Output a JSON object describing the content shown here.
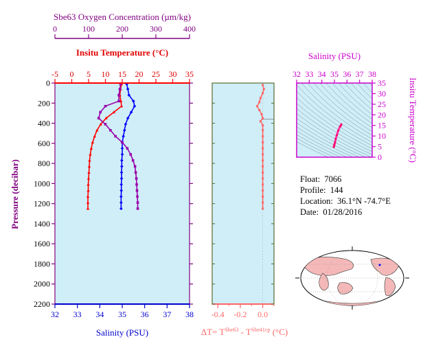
{
  "chart_data": [
    {
      "type": "line",
      "name_axis": "profile",
      "y_axis": {
        "label": "Pressure (decibar)",
        "range": [
          0,
          2200
        ],
        "ticks": [
          0,
          200,
          400,
          600,
          800,
          1000,
          1200,
          1400,
          1600,
          1800,
          2000,
          2200
        ],
        "inverted": true,
        "color": "#800080"
      },
      "x_axes": {
        "oxygen": {
          "label": "Sbe63 Oxygen Concentration (µm/kg)",
          "range": [
            0,
            400
          ],
          "ticks": [
            0,
            100,
            200,
            300,
            400
          ],
          "color": "#800080"
        },
        "temperature": {
          "label": "Insitu Temperature (°C)",
          "range": [
            -5,
            35
          ],
          "ticks": [
            -5,
            0,
            5,
            10,
            15,
            20,
            25,
            30,
            35
          ],
          "color": "#e00000"
        },
        "salinity": {
          "label": "Salinity (PSU)",
          "range": [
            32,
            38
          ],
          "ticks": [
            32,
            33,
            34,
            35,
            36,
            37,
            38
          ],
          "color": "#0000cc"
        }
      },
      "background": "#cfeef7",
      "series": [
        {
          "key": "temperature",
          "color": "#ff0000",
          "points": [
            [
              14.8,
              10
            ],
            [
              14.5,
              60
            ],
            [
              14.3,
              120
            ],
            [
              14.6,
              180
            ],
            [
              14.8,
              230
            ],
            [
              12.5,
              290
            ],
            [
              10.2,
              350
            ],
            [
              8.6,
              410
            ],
            [
              7.5,
              470
            ],
            [
              6.8,
              530
            ],
            [
              6.2,
              590
            ],
            [
              5.8,
              650
            ],
            [
              5.5,
              710
            ],
            [
              5.3,
              770
            ],
            [
              5.2,
              830
            ],
            [
              5.1,
              890
            ],
            [
              5.0,
              950
            ],
            [
              4.9,
              1010
            ],
            [
              4.9,
              1070
            ],
            [
              4.8,
              1130
            ],
            [
              4.8,
              1190
            ],
            [
              4.8,
              1250
            ]
          ]
        },
        {
          "key": "salinity",
          "color": "#0000ff",
          "points": [
            [
              35.2,
              10
            ],
            [
              35.25,
              60
            ],
            [
              35.3,
              120
            ],
            [
              35.5,
              180
            ],
            [
              35.55,
              230
            ],
            [
              35.4,
              290
            ],
            [
              35.25,
              350
            ],
            [
              35.15,
              410
            ],
            [
              35.1,
              470
            ],
            [
              35.05,
              530
            ],
            [
              35.0,
              590
            ],
            [
              35.0,
              650
            ],
            [
              35.0,
              710
            ],
            [
              34.98,
              770
            ],
            [
              34.98,
              830
            ],
            [
              34.97,
              890
            ],
            [
              34.97,
              950
            ],
            [
              34.96,
              1010
            ],
            [
              34.96,
              1070
            ],
            [
              34.95,
              1130
            ],
            [
              34.95,
              1190
            ],
            [
              34.95,
              1250
            ]
          ]
        },
        {
          "key": "oxygen",
          "color": "#9900aa",
          "points": [
            [
              195,
              10
            ],
            [
              193,
              60
            ],
            [
              190,
              120
            ],
            [
              190,
              180
            ],
            [
              150,
              230
            ],
            [
              135,
              290
            ],
            [
              130,
              350
            ],
            [
              150,
              410
            ],
            [
              165,
              470
            ],
            [
              180,
              530
            ],
            [
              200,
              590
            ],
            [
              215,
              650
            ],
            [
              225,
              710
            ],
            [
              232,
              770
            ],
            [
              238,
              830
            ],
            [
              240,
              890
            ],
            [
              242,
              950
            ],
            [
              243,
              1010
            ],
            [
              244,
              1070
            ],
            [
              245,
              1130
            ],
            [
              246,
              1190
            ],
            [
              246,
              1250
            ]
          ]
        }
      ]
    },
    {
      "type": "line",
      "name_axis": "delta_t",
      "x_axis": {
        "label_main": "ΔT= T",
        "sup1": "Sbe63",
        "label_mid": " - T",
        "sup2": "Sbe41cp",
        "label_end": " (°C)",
        "range": [
          -0.45,
          0.1
        ],
        "ticks": [
          -0.4,
          -0.2,
          0.0
        ],
        "tick_labels": [
          "-0.4",
          "-0.2",
          "0.0"
        ],
        "color": "#ff6666"
      },
      "y_range": [
        0,
        2200
      ],
      "series": [
        {
          "name": "",
          "color": "#ff6666",
          "points": [
            [
              0.0,
              20
            ],
            [
              0.01,
              60
            ],
            [
              0.0,
              100
            ],
            [
              -0.02,
              150
            ],
            [
              -0.03,
              190
            ],
            [
              -0.05,
              230
            ],
            [
              -0.03,
              270
            ],
            [
              -0.01,
              310
            ],
            [
              0.0,
              350
            ],
            [
              -0.02,
              380
            ],
            [
              0.0,
              420
            ],
            [
              0.0,
              470
            ],
            [
              0.0,
              530
            ],
            [
              0.0,
              590
            ],
            [
              0.0,
              650
            ],
            [
              0.0,
              710
            ],
            [
              0.0,
              770
            ],
            [
              0.0,
              830
            ],
            [
              0.0,
              890
            ],
            [
              0.0,
              950
            ],
            [
              0.0,
              1010
            ],
            [
              0.0,
              1070
            ],
            [
              0.0,
              1130
            ],
            [
              0.0,
              1190
            ],
            [
              0.0,
              1250
            ]
          ]
        }
      ],
      "reference_lines": [
        {
          "depth": 360,
          "color": "#888888"
        }
      ]
    },
    {
      "type": "line",
      "name_axis": "ts_diagram",
      "x_axis": {
        "label": "Salinity (PSU)",
        "range": [
          32,
          38
        ],
        "ticks": [
          32,
          33,
          34,
          35,
          36,
          37,
          38
        ],
        "color": "#cc00cc"
      },
      "y_axis": {
        "label": "Insitu Temperature (°C)",
        "range": [
          0,
          35
        ],
        "ticks": [
          0,
          5,
          10,
          15,
          20,
          25,
          30,
          35
        ],
        "color": "#cc00cc"
      },
      "series": [
        {
          "name": "",
          "color": "#ff33aa",
          "points": [
            [
              34.95,
              4.8
            ],
            [
              34.97,
              5.2
            ],
            [
              35.0,
              6.0
            ],
            [
              35.05,
              7.0
            ],
            [
              35.1,
              8.6
            ],
            [
              35.2,
              10.5
            ],
            [
              35.3,
              12.5
            ],
            [
              35.45,
              14.5
            ],
            [
              35.55,
              15.5
            ],
            [
              35.5,
              14.8
            ]
          ]
        }
      ]
    }
  ],
  "info": {
    "float_label": "Float:",
    "float_value": "7066",
    "profile_label": "Profile:",
    "profile_value": "144",
    "location_label": "Location:",
    "location_value": "36.1°N  -74.7°E",
    "date_label": "Date:",
    "date_value": "01/28/2016"
  },
  "colors": {
    "panel_bg": "#cfeef7",
    "map_land": "#f4b8b8",
    "map_ocean": "#ffffff"
  }
}
